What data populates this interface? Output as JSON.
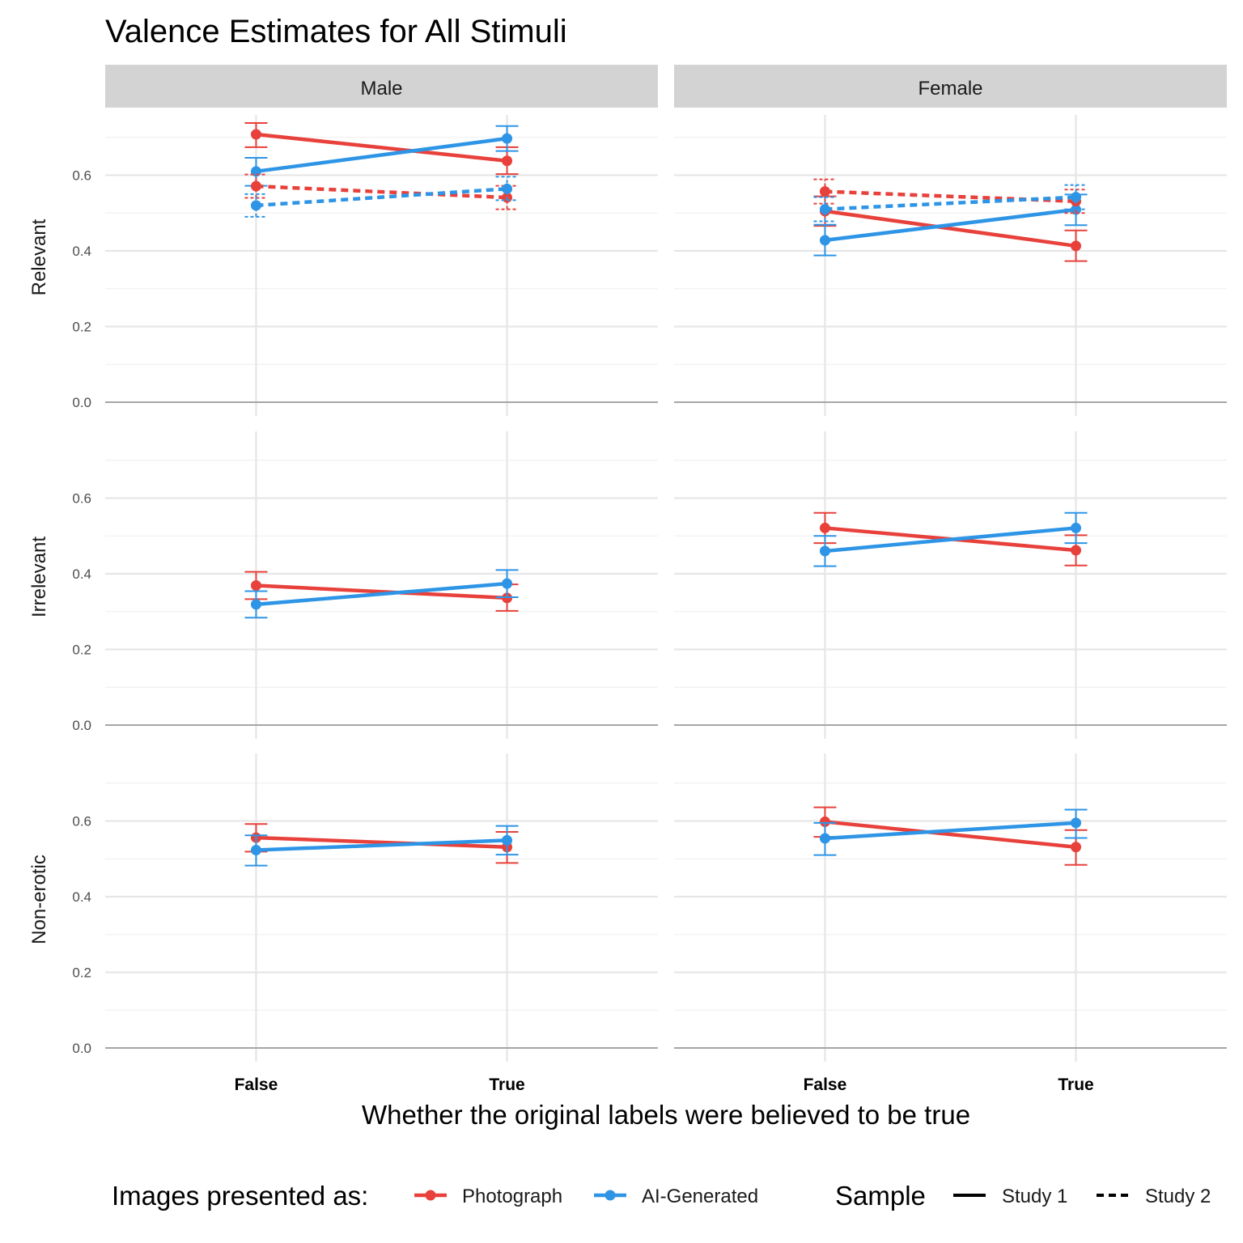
{
  "chart_data": {
    "type": "line",
    "title": "Valence Estimates for All Stimuli",
    "xlabel": "Whether the original labels were believed to be true",
    "x_categories": [
      "False",
      "True"
    ],
    "ylim": [
      0,
      0.75
    ],
    "yticks": [
      0.0,
      0.2,
      0.4,
      0.6
    ],
    "ytick_labels": [
      "0.0",
      "0.2",
      "0.4",
      "0.6"
    ],
    "columns": [
      "Male",
      "Female"
    ],
    "rows": [
      "Relevant",
      "Irrelevant",
      "Non-erotic"
    ],
    "legend": {
      "color_title": "Images presented as:",
      "color_items": [
        {
          "label": "Photograph",
          "color": "#e8413b"
        },
        {
          "label": "AI-Generated",
          "color": "#2e95e6"
        }
      ],
      "linetype_title": "Sample",
      "linetype_items": [
        {
          "label": "Study 1",
          "dash": "solid"
        },
        {
          "label": "Study 2",
          "dash": "dashed"
        }
      ],
      "placement": "bottom"
    },
    "series": [
      {
        "panel": "Relevant|Male",
        "group": "Photograph",
        "sample": "Study 1",
        "values": [
          0.708,
          0.638
        ],
        "lower": [
          0.674,
          0.603
        ],
        "upper": [
          0.738,
          0.674
        ]
      },
      {
        "panel": "Relevant|Male",
        "group": "AI-Generated",
        "sample": "Study 1",
        "values": [
          0.61,
          0.697
        ],
        "lower": [
          0.572,
          0.664
        ],
        "upper": [
          0.646,
          0.73
        ]
      },
      {
        "panel": "Relevant|Male",
        "group": "Photograph",
        "sample": "Study 2",
        "values": [
          0.571,
          0.541
        ],
        "lower": [
          0.54,
          0.51
        ],
        "upper": [
          0.602,
          0.572
        ]
      },
      {
        "panel": "Relevant|Male",
        "group": "AI-Generated",
        "sample": "Study 2",
        "values": [
          0.52,
          0.564
        ],
        "lower": [
          0.49,
          0.534
        ],
        "upper": [
          0.55,
          0.596
        ]
      },
      {
        "panel": "Relevant|Female",
        "group": "Photograph",
        "sample": "Study 1",
        "values": [
          0.505,
          0.413
        ],
        "lower": [
          0.466,
          0.373
        ],
        "upper": [
          0.544,
          0.454
        ]
      },
      {
        "panel": "Relevant|Female",
        "group": "AI-Generated",
        "sample": "Study 1",
        "values": [
          0.428,
          0.509
        ],
        "lower": [
          0.388,
          0.468
        ],
        "upper": [
          0.469,
          0.549
        ]
      },
      {
        "panel": "Relevant|Female",
        "group": "Photograph",
        "sample": "Study 2",
        "values": [
          0.557,
          0.531
        ],
        "lower": [
          0.525,
          0.5
        ],
        "upper": [
          0.589,
          0.562
        ]
      },
      {
        "panel": "Relevant|Female",
        "group": "AI-Generated",
        "sample": "Study 2",
        "values": [
          0.51,
          0.542
        ],
        "lower": [
          0.478,
          0.51
        ],
        "upper": [
          0.542,
          0.574
        ]
      },
      {
        "panel": "Irrelevant|Male",
        "group": "Photograph",
        "sample": "Study 1",
        "values": [
          0.369,
          0.336
        ],
        "lower": [
          0.333,
          0.302
        ],
        "upper": [
          0.405,
          0.372
        ]
      },
      {
        "panel": "Irrelevant|Male",
        "group": "AI-Generated",
        "sample": "Study 1",
        "values": [
          0.319,
          0.374
        ],
        "lower": [
          0.284,
          0.338
        ],
        "upper": [
          0.354,
          0.41
        ]
      },
      {
        "panel": "Irrelevant|Female",
        "group": "Photograph",
        "sample": "Study 1",
        "values": [
          0.521,
          0.462
        ],
        "lower": [
          0.481,
          0.422
        ],
        "upper": [
          0.561,
          0.502
        ]
      },
      {
        "panel": "Irrelevant|Female",
        "group": "AI-Generated",
        "sample": "Study 1",
        "values": [
          0.46,
          0.521
        ],
        "lower": [
          0.42,
          0.481
        ],
        "upper": [
          0.5,
          0.561
        ]
      },
      {
        "panel": "Non-erotic|Male",
        "group": "Photograph",
        "sample": "Study 1",
        "values": [
          0.556,
          0.531
        ],
        "lower": [
          0.519,
          0.489
        ],
        "upper": [
          0.592,
          0.571
        ]
      },
      {
        "panel": "Non-erotic|Male",
        "group": "AI-Generated",
        "sample": "Study 1",
        "values": [
          0.523,
          0.549
        ],
        "lower": [
          0.482,
          0.511
        ],
        "upper": [
          0.562,
          0.587
        ]
      },
      {
        "panel": "Non-erotic|Female",
        "group": "Photograph",
        "sample": "Study 1",
        "values": [
          0.598,
          0.531
        ],
        "lower": [
          0.558,
          0.484
        ],
        "upper": [
          0.636,
          0.576
        ]
      },
      {
        "panel": "Non-erotic|Female",
        "group": "AI-Generated",
        "sample": "Study 1",
        "values": [
          0.554,
          0.595
        ],
        "lower": [
          0.51,
          0.555
        ],
        "upper": [
          0.595,
          0.63
        ]
      }
    ]
  }
}
